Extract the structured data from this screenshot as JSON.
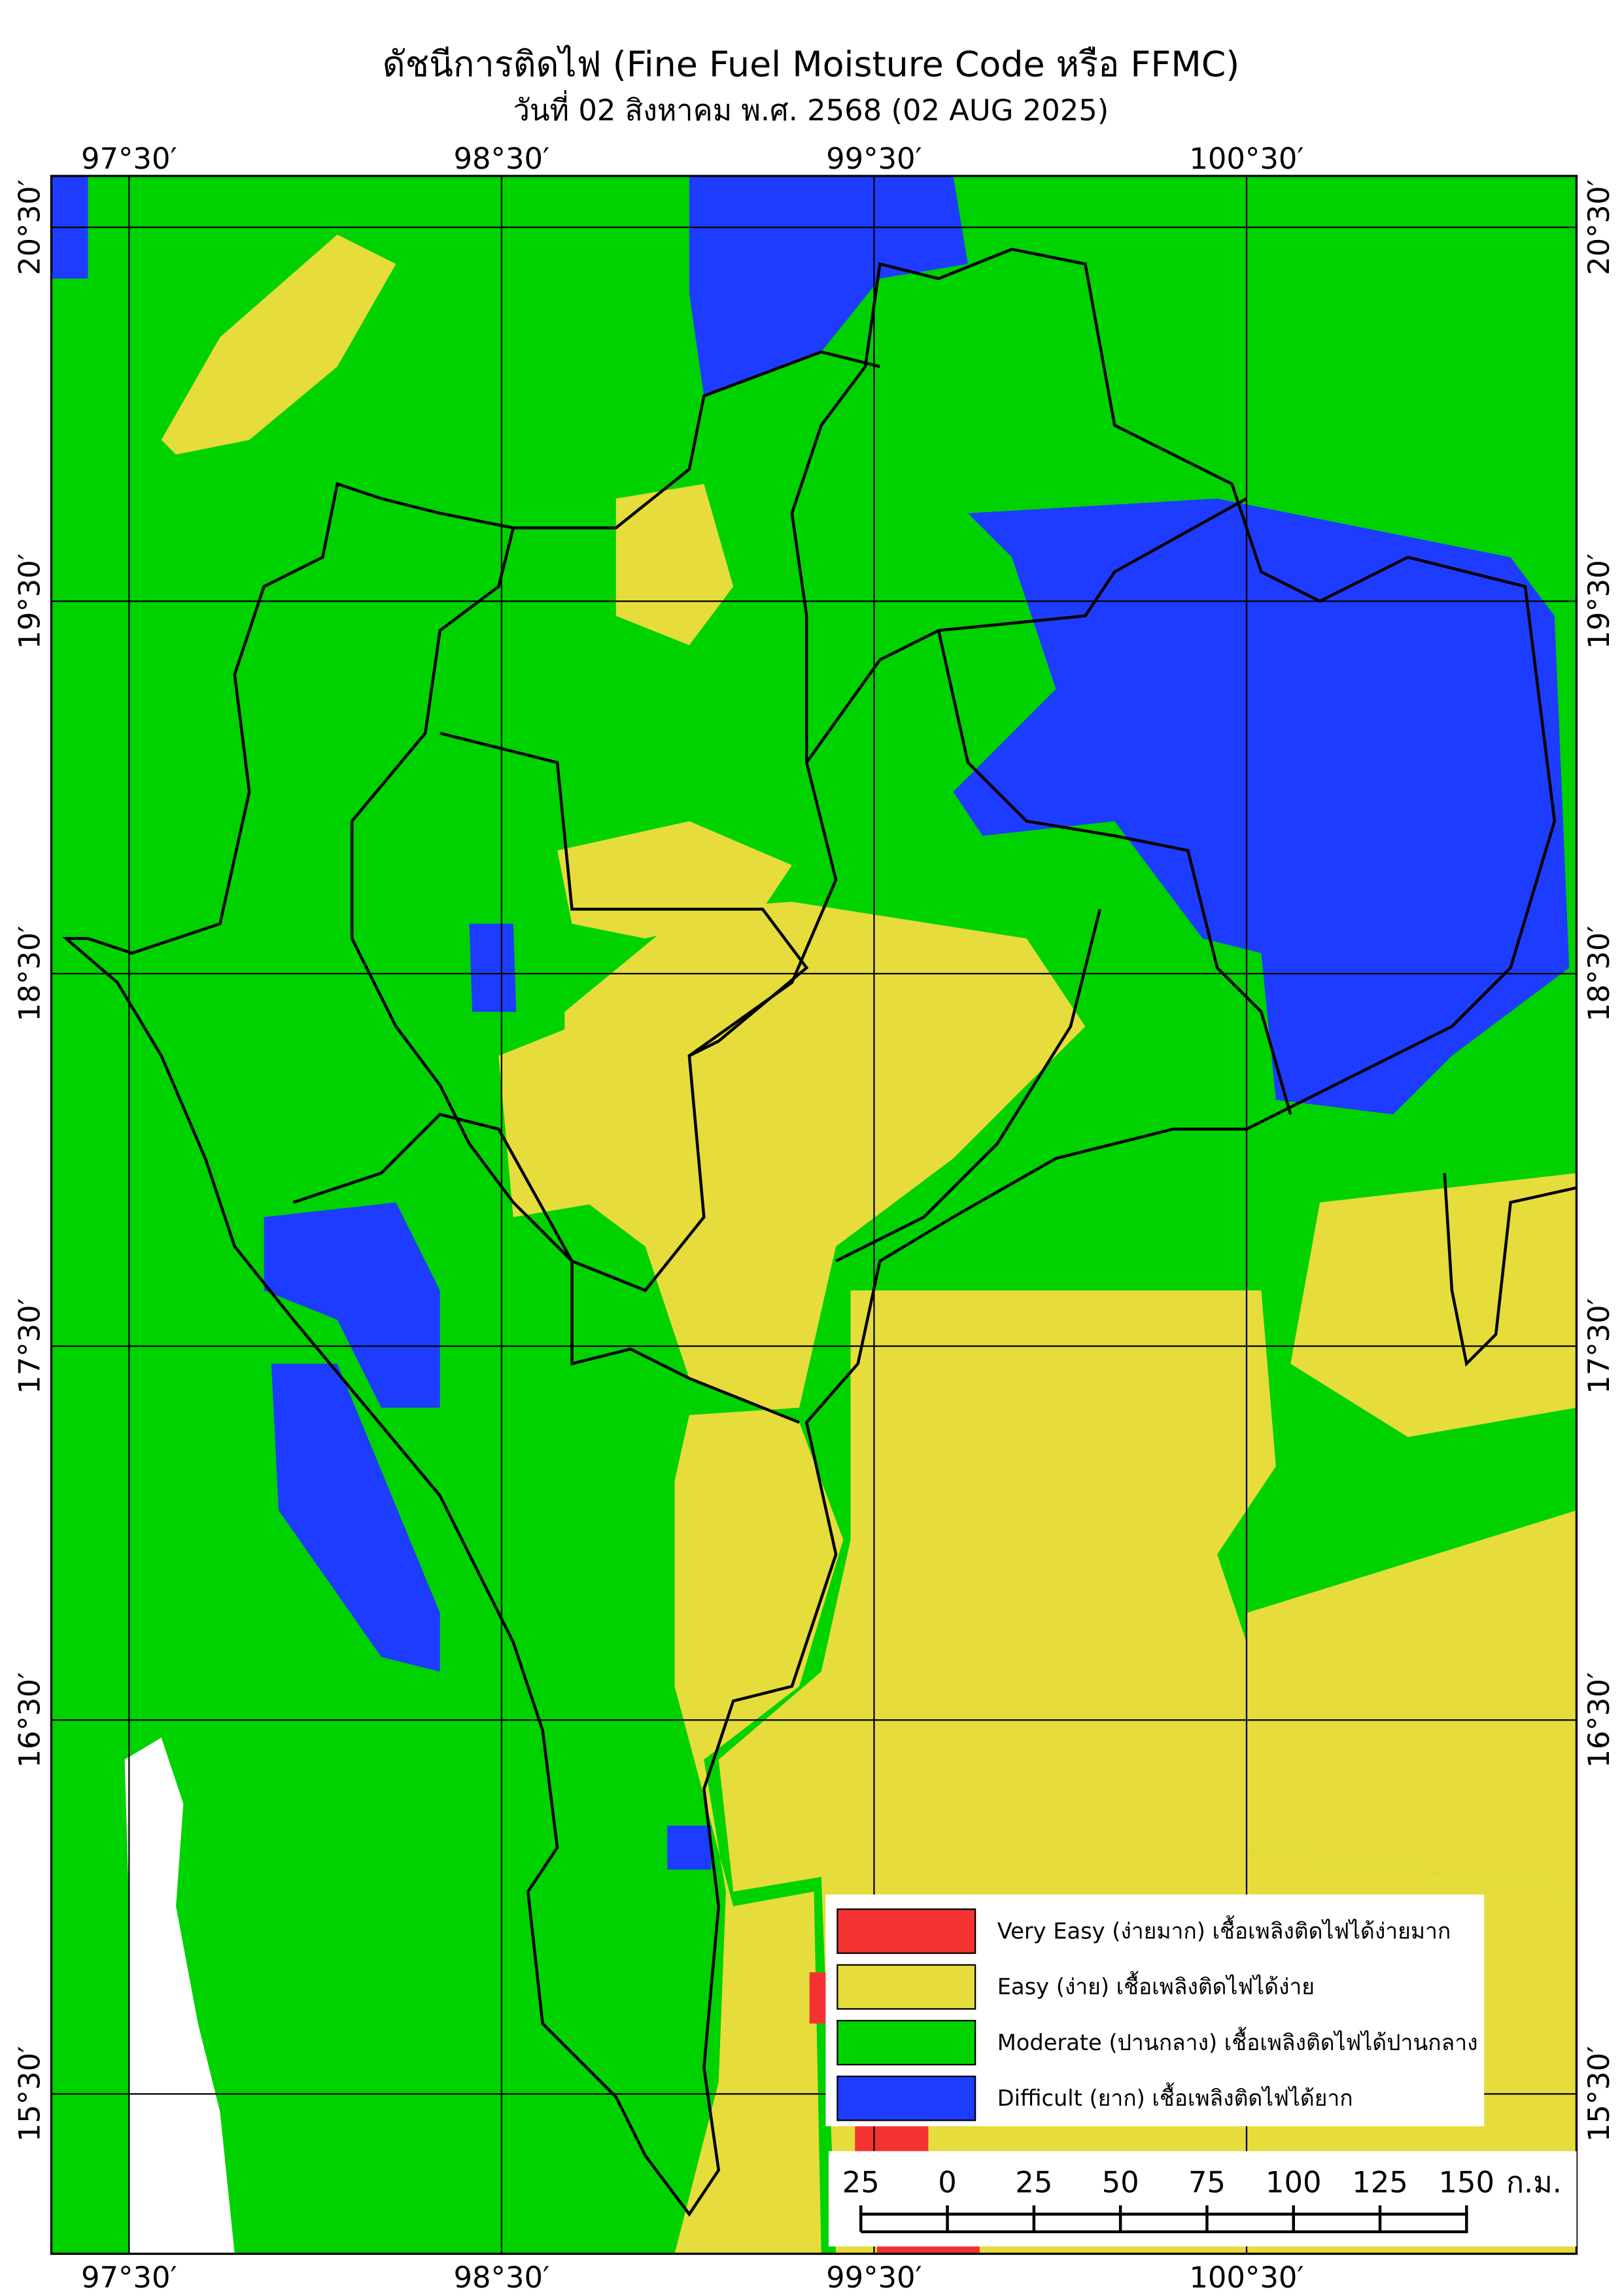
{
  "header": {
    "title": "ดัชนีการติดไฟ (Fine Fuel Moisture Code หรือ FFMC)",
    "subtitle": "วันที่ 02 สิงหาคม พ.ศ. 2568 (02 AUG 2025)"
  },
  "map": {
    "longitude_labels": [
      "97°30′",
      "98°30′",
      "99°30′",
      "100°30′"
    ],
    "latitude_labels": [
      "20°30′",
      "19°30′",
      "18°30′",
      "17°30′",
      "16°30′",
      "15°30′"
    ]
  },
  "legend": {
    "items": [
      {
        "label": "Very Easy (ง่ายมาก) เชื้อเพลิงติดไฟได้ง่ายมาก",
        "color": "#f53232"
      },
      {
        "label": "Easy (ง่าย) เชื้อเพลิงติดไฟได้ง่าย",
        "color": "#e6dc3c"
      },
      {
        "label": "Moderate (ปานกลาง) เชื้อเพลิงติดไฟได้ปานกลาง",
        "color": "#00d200"
      },
      {
        "label": "Difficult (ยาก) เชื้อเพลิงติดไฟได้ยาก",
        "color": "#1e3cff"
      }
    ]
  },
  "scale_bar": {
    "labels": [
      "25",
      "0",
      "25",
      "50",
      "75",
      "100",
      "125",
      "150"
    ],
    "unit": "ก.ม."
  }
}
